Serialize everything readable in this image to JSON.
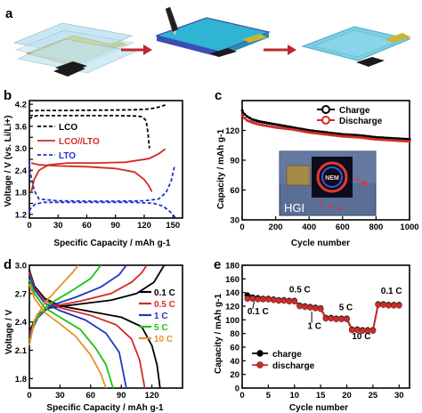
{
  "panel_a": {
    "label": "a",
    "arrow_color": "#c0282e",
    "layer_colors": {
      "separator": "#bfe3f2",
      "electrode": "#d8c341",
      "electrode_dark": "#1b1b1b",
      "tab": "#c9b43a",
      "coated": "#2fb4d3",
      "coated_edge": "#3a4fb3",
      "sealed": "#6fcbe0"
    }
  },
  "chart_data": [
    {
      "panel": "b",
      "type": "line",
      "title": "",
      "xlabel": "Specific Capacity / mAh g-1",
      "ylabel": "Voltage / V (vs. Li/Li+)",
      "xlim": [
        0,
        160
      ],
      "ylim": [
        1.1,
        4.3
      ],
      "xticks": [
        0,
        30,
        60,
        90,
        120,
        150
      ],
      "yticks": [
        1.2,
        1.5,
        1.8,
        2.1,
        2.4,
        2.7,
        3.0,
        3.3,
        3.6,
        3.9,
        4.2
      ],
      "ytick_labels": [
        "1.2",
        "",
        "1.8",
        "",
        "2.4",
        "",
        "3.0",
        "",
        "3.6",
        "",
        "4.2"
      ],
      "legend": "top-left",
      "series": [
        {
          "name": "LCO",
          "color": "#000000",
          "style": "dashed",
          "curve": [
            [
              0,
              3.8
            ],
            [
              3,
              3.86
            ],
            [
              8,
              3.89
            ],
            [
              30,
              3.89
            ],
            [
              60,
              3.89
            ],
            [
              90,
              3.89
            ],
            [
              110,
              3.88
            ],
            [
              118,
              3.86
            ],
            [
              122,
              3.75
            ],
            [
              124,
              3.4
            ],
            [
              125,
              3.1
            ],
            [
              125.5,
              3.0
            ]
          ]
        },
        {
          "name": "LCO",
          "color": "#000000",
          "style": "dashed",
          "curve": [
            [
              0,
              4.02
            ],
            [
              10,
              4.03
            ],
            [
              40,
              4.03
            ],
            [
              80,
              4.04
            ],
            [
              110,
              4.05
            ],
            [
              125,
              4.07
            ],
            [
              135,
              4.12
            ],
            [
              142,
              4.18
            ]
          ]
        },
        {
          "name": "LCO//LTO",
          "color": "#d42a24",
          "style": "solid",
          "curve": [
            [
              2,
              1.8
            ],
            [
              5,
              2.15
            ],
            [
              10,
              2.4
            ],
            [
              20,
              2.55
            ],
            [
              40,
              2.6
            ],
            [
              70,
              2.6
            ],
            [
              100,
              2.62
            ],
            [
              125,
              2.72
            ],
            [
              135,
              2.85
            ],
            [
              142,
              2.98
            ]
          ]
        },
        {
          "name": "LCO//LTO",
          "color": "#d42a24",
          "style": "solid",
          "curve": [
            [
              2,
              2.6
            ],
            [
              10,
              2.55
            ],
            [
              30,
              2.52
            ],
            [
              60,
              2.5
            ],
            [
              90,
              2.45
            ],
            [
              110,
              2.35
            ],
            [
              120,
              2.15
            ],
            [
              125,
              1.97
            ],
            [
              128,
              1.82
            ]
          ]
        },
        {
          "name": "LTO",
          "color": "#1f36c4",
          "style": "dashed",
          "curve": [
            [
              0,
              2.6
            ],
            [
              2,
              2.2
            ],
            [
              5,
              1.85
            ],
            [
              10,
              1.62
            ],
            [
              30,
              1.57
            ],
            [
              60,
              1.56
            ],
            [
              90,
              1.56
            ],
            [
              120,
              1.57
            ],
            [
              135,
              1.62
            ],
            [
              143,
              1.8
            ],
            [
              148,
              2.1
            ],
            [
              152,
              2.55
            ]
          ]
        },
        {
          "name": "LTO",
          "color": "#1f36c4",
          "style": "dashed",
          "curve": [
            [
              0,
              1.3
            ],
            [
              2,
              1.38
            ],
            [
              6,
              1.48
            ],
            [
              15,
              1.53
            ],
            [
              40,
              1.53
            ],
            [
              80,
              1.53
            ],
            [
              110,
              1.53
            ],
            [
              130,
              1.5
            ],
            [
              140,
              1.42
            ],
            [
              148,
              1.25
            ],
            [
              153,
              1.1
            ]
          ]
        }
      ]
    },
    {
      "panel": "c",
      "type": "line",
      "title": "",
      "xlabel": "Cycle number",
      "ylabel": "Capacity / mAh g-1",
      "xlim": [
        0,
        1000
      ],
      "ylim": [
        30,
        150
      ],
      "xticks": [
        0,
        200,
        400,
        600,
        800,
        1000
      ],
      "yticks": [
        30,
        60,
        90,
        120
      ],
      "legend": "top-right",
      "series": [
        {
          "name": "Charge",
          "color": "#000000",
          "marker": "circle",
          "curve": [
            [
              1,
              140
            ],
            [
              10,
              137
            ],
            [
              30,
              134
            ],
            [
              60,
              131
            ],
            [
              100,
              129
            ],
            [
              200,
              126
            ],
            [
              300,
              123
            ],
            [
              400,
              120
            ],
            [
              500,
              118
            ],
            [
              600,
              116
            ],
            [
              700,
              115
            ],
            [
              800,
              113
            ],
            [
              900,
              112
            ],
            [
              1000,
              111
            ]
          ]
        },
        {
          "name": "Discharge",
          "color": "#d42a24",
          "marker": "circle",
          "curve": [
            [
              1,
              135
            ],
            [
              10,
              133
            ],
            [
              30,
              130
            ],
            [
              60,
              128
            ],
            [
              100,
              126
            ],
            [
              200,
              123
            ],
            [
              300,
              121
            ],
            [
              400,
              118
            ],
            [
              500,
              116
            ],
            [
              600,
              114
            ],
            [
              700,
              113
            ],
            [
              800,
              111
            ],
            [
              900,
              110
            ],
            [
              1000,
              109
            ]
          ]
        }
      ],
      "inset": {
        "text": "HGI",
        "photo_colors": {
          "background": "#5b6f96",
          "board": "#0b0d1c",
          "ring": "#e23a2e",
          "device": "#a48a4a",
          "led": "#e23030"
        }
      }
    },
    {
      "panel": "d",
      "type": "line",
      "title": "",
      "xlabel": "Specific Capacity / mAh g-1",
      "ylabel": "Voltage / V",
      "xlim": [
        0,
        150
      ],
      "ylim": [
        1.7,
        3.0
      ],
      "xticks": [
        0,
        30,
        60,
        90,
        120
      ],
      "yticks": [
        1.8,
        2.1,
        2.4,
        2.7,
        3.0
      ],
      "legend": "right",
      "series": [
        {
          "name": "0.1 C",
          "color": "#000000",
          "charge": [
            [
              0,
              2.3
            ],
            [
              8,
              2.48
            ],
            [
              20,
              2.55
            ],
            [
              50,
              2.59
            ],
            [
              80,
              2.63
            ],
            [
              105,
              2.7
            ],
            [
              122,
              2.82
            ],
            [
              132,
              3.0
            ]
          ],
          "discharge": [
            [
              0,
              2.95
            ],
            [
              5,
              2.78
            ],
            [
              15,
              2.65
            ],
            [
              30,
              2.57
            ],
            [
              60,
              2.51
            ],
            [
              90,
              2.45
            ],
            [
              110,
              2.35
            ],
            [
              120,
              2.15
            ],
            [
              125,
              1.95
            ],
            [
              128,
              1.7
            ]
          ]
        },
        {
          "name": "0.5 C",
          "color": "#d42a24",
          "charge": [
            [
              0,
              2.28
            ],
            [
              8,
              2.46
            ],
            [
              20,
              2.56
            ],
            [
              50,
              2.62
            ],
            [
              80,
              2.7
            ],
            [
              100,
              2.82
            ],
            [
              110,
              2.92
            ],
            [
              115,
              3.0
            ]
          ],
          "discharge": [
            [
              0,
              2.93
            ],
            [
              5,
              2.76
            ],
            [
              15,
              2.63
            ],
            [
              30,
              2.55
            ],
            [
              60,
              2.47
            ],
            [
              85,
              2.37
            ],
            [
              100,
              2.22
            ],
            [
              108,
              2.0
            ],
            [
              113,
              1.7
            ]
          ]
        },
        {
          "name": "1 C",
          "color": "#1f36c4",
          "charge": [
            [
              0,
              2.25
            ],
            [
              8,
              2.44
            ],
            [
              20,
              2.57
            ],
            [
              45,
              2.66
            ],
            [
              70,
              2.77
            ],
            [
              88,
              2.9
            ],
            [
              95,
              3.0
            ]
          ],
          "discharge": [
            [
              0,
              2.9
            ],
            [
              5,
              2.74
            ],
            [
              15,
              2.6
            ],
            [
              30,
              2.52
            ],
            [
              55,
              2.42
            ],
            [
              75,
              2.28
            ],
            [
              88,
              2.08
            ],
            [
              95,
              1.7
            ]
          ]
        },
        {
          "name": "5 C",
          "color": "#18c418",
          "charge": [
            [
              0,
              2.2
            ],
            [
              6,
              2.42
            ],
            [
              18,
              2.58
            ],
            [
              40,
              2.72
            ],
            [
              60,
              2.86
            ],
            [
              70,
              3.0
            ]
          ],
          "discharge": [
            [
              0,
              2.85
            ],
            [
              5,
              2.7
            ],
            [
              15,
              2.55
            ],
            [
              30,
              2.45
            ],
            [
              50,
              2.32
            ],
            [
              65,
              2.12
            ],
            [
              75,
              1.95
            ],
            [
              82,
              1.7
            ]
          ]
        },
        {
          "name": "10 C",
          "color": "#e8902b",
          "charge": [
            [
              0,
              2.15
            ],
            [
              5,
              2.42
            ],
            [
              15,
              2.6
            ],
            [
              30,
              2.78
            ],
            [
              42,
              2.92
            ],
            [
              48,
              3.0
            ]
          ],
          "discharge": [
            [
              0,
              2.8
            ],
            [
              5,
              2.65
            ],
            [
              15,
              2.5
            ],
            [
              30,
              2.38
            ],
            [
              45,
              2.25
            ],
            [
              60,
              2.05
            ],
            [
              70,
              1.85
            ],
            [
              75,
              1.7
            ]
          ]
        }
      ]
    },
    {
      "panel": "e",
      "type": "scatter",
      "title": "",
      "xlabel": "Cycle number",
      "ylabel": "Capacity / mAh g-1",
      "xlim": [
        0,
        32
      ],
      "ylim": [
        0,
        180
      ],
      "xticks": [
        0,
        5,
        10,
        15,
        20,
        25,
        30
      ],
      "yticks": [
        0,
        20,
        40,
        60,
        80,
        100,
        120,
        140,
        160,
        180
      ],
      "legend": "bottom-left",
      "rate_labels": [
        {
          "text": "0.1 C",
          "x": 1,
          "y": 108
        },
        {
          "text": "0.5 C",
          "x": 9,
          "y": 140
        },
        {
          "text": "1 C",
          "x": 12.5,
          "y": 87
        },
        {
          "text": "5 C",
          "x": 18.5,
          "y": 114
        },
        {
          "text": "10 C",
          "x": 21,
          "y": 72
        },
        {
          "text": "0.1 C",
          "x": 26.5,
          "y": 138
        }
      ],
      "series": [
        {
          "name": "charge",
          "color": "#000000",
          "marker": "circle",
          "x": [
            1,
            2,
            3,
            4,
            5,
            6,
            7,
            8,
            9,
            10,
            11,
            12,
            13,
            14,
            15,
            16,
            17,
            18,
            19,
            20,
            21,
            22,
            23,
            24,
            25,
            26,
            27,
            28,
            29,
            30
          ],
          "y": [
            136,
            133,
            132,
            131,
            131,
            130,
            129,
            129,
            128,
            128,
            121,
            120,
            119,
            118,
            117,
            103,
            103,
            102,
            102,
            102,
            86,
            86,
            85,
            85,
            85,
            123,
            123,
            122,
            122,
            122
          ]
        },
        {
          "name": "discharge",
          "color": "#d42a24",
          "marker": "circle",
          "x": [
            1,
            2,
            3,
            4,
            5,
            6,
            7,
            8,
            9,
            10,
            11,
            12,
            13,
            14,
            15,
            16,
            17,
            18,
            19,
            20,
            21,
            22,
            23,
            24,
            25,
            26,
            27,
            28,
            29,
            30
          ],
          "y": [
            131,
            131,
            130,
            130,
            130,
            129,
            128,
            128,
            127,
            127,
            120,
            119,
            118,
            117,
            116,
            102,
            102,
            101,
            101,
            101,
            85,
            85,
            84,
            84,
            84,
            122,
            122,
            121,
            121,
            121
          ]
        }
      ]
    }
  ]
}
